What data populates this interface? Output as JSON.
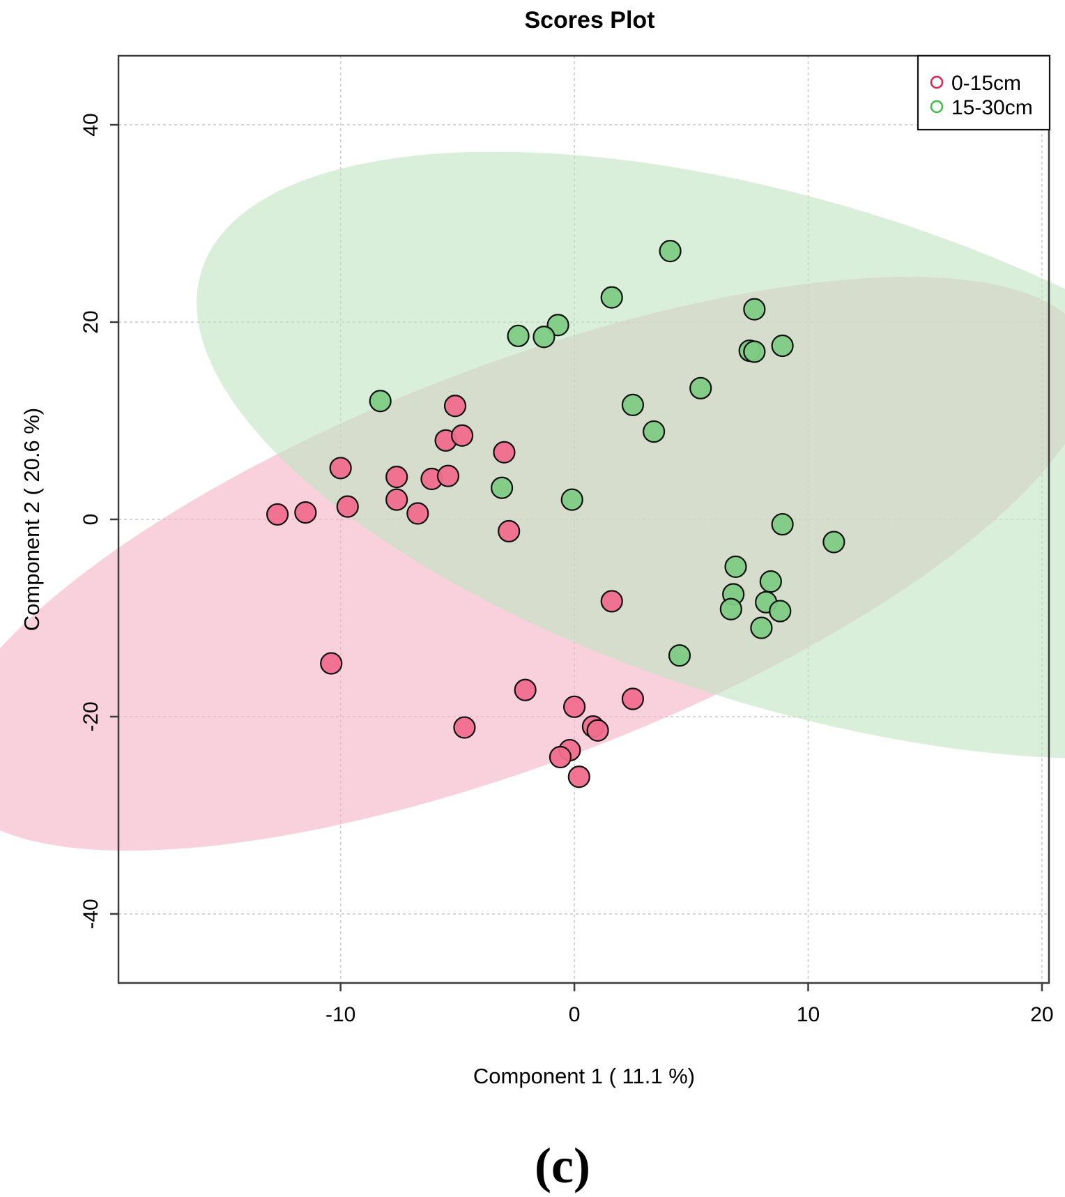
{
  "chart_data": {
    "type": "scatter",
    "title": "Scores Plot",
    "xlabel": "Component 1 ( 11.1 %)",
    "ylabel": "Component 2 ( 20.6 %)",
    "xlim": [
      -19.5,
      20.3
    ],
    "ylim": [
      -47,
      47
    ],
    "x_ticks": [
      -10,
      0,
      10,
      20
    ],
    "y_ticks": [
      40,
      20,
      0,
      -20,
      -40
    ],
    "grid": true,
    "legend_position": "top-right",
    "caption": "(c)",
    "series": [
      {
        "name": "0-15cm",
        "color": "#E8204F",
        "fill": "#F06D8D",
        "ellipse_fill": "#F5B3C4",
        "ellipse": {
          "cx": -2.4,
          "cy": -4.5,
          "rx": 35.0,
          "ry": 15.0,
          "angle_deg": 52
        },
        "points": [
          [
            -12.7,
            0.5
          ],
          [
            -11.5,
            0.7
          ],
          [
            -10.0,
            5.2
          ],
          [
            -9.7,
            1.3
          ],
          [
            -7.6,
            4.3
          ],
          [
            -7.6,
            2.0
          ],
          [
            -6.7,
            0.6
          ],
          [
            -6.1,
            4.1
          ],
          [
            -5.5,
            8.0
          ],
          [
            -5.4,
            4.4
          ],
          [
            -5.1,
            11.5
          ],
          [
            -4.8,
            8.5
          ],
          [
            -3.0,
            6.8
          ],
          [
            -2.8,
            -1.2
          ],
          [
            1.6,
            -8.3
          ],
          [
            2.5,
            -18.2
          ],
          [
            -10.4,
            -14.6
          ],
          [
            -4.7,
            -21.1
          ],
          [
            -2.1,
            -17.3
          ],
          [
            0.0,
            -19.0
          ],
          [
            0.8,
            -21.0
          ],
          [
            1.0,
            -21.4
          ],
          [
            -0.2,
            -23.4
          ],
          [
            -0.6,
            -24.1
          ],
          [
            0.2,
            -26.1
          ]
        ]
      },
      {
        "name": "15-30cm",
        "color": "#3DBE47",
        "fill": "#7ECB84",
        "ellipse_fill": "#BFE5C1",
        "ellipse": {
          "cx": 9.5,
          "cy": 6.5,
          "rx": 35.0,
          "ry": 19.5,
          "angle_deg": 125
        },
        "points": [
          [
            4.1,
            27.2
          ],
          [
            1.6,
            22.5
          ],
          [
            7.7,
            21.3
          ],
          [
            -0.7,
            19.7
          ],
          [
            -2.4,
            18.6
          ],
          [
            -1.3,
            18.5
          ],
          [
            8.9,
            17.6
          ],
          [
            7.5,
            17.1
          ],
          [
            7.7,
            17.0
          ],
          [
            5.4,
            13.3
          ],
          [
            2.5,
            11.6
          ],
          [
            3.4,
            8.9
          ],
          [
            -8.3,
            12.0
          ],
          [
            -3.1,
            3.2
          ],
          [
            -0.1,
            2.0
          ],
          [
            8.9,
            -0.5
          ],
          [
            11.1,
            -2.3
          ],
          [
            6.9,
            -4.8
          ],
          [
            8.4,
            -6.3
          ],
          [
            6.8,
            -7.6
          ],
          [
            8.2,
            -8.4
          ],
          [
            6.7,
            -9.1
          ],
          [
            8.8,
            -9.3
          ],
          [
            8.0,
            -11.0
          ],
          [
            4.5,
            -13.8
          ]
        ]
      }
    ]
  }
}
